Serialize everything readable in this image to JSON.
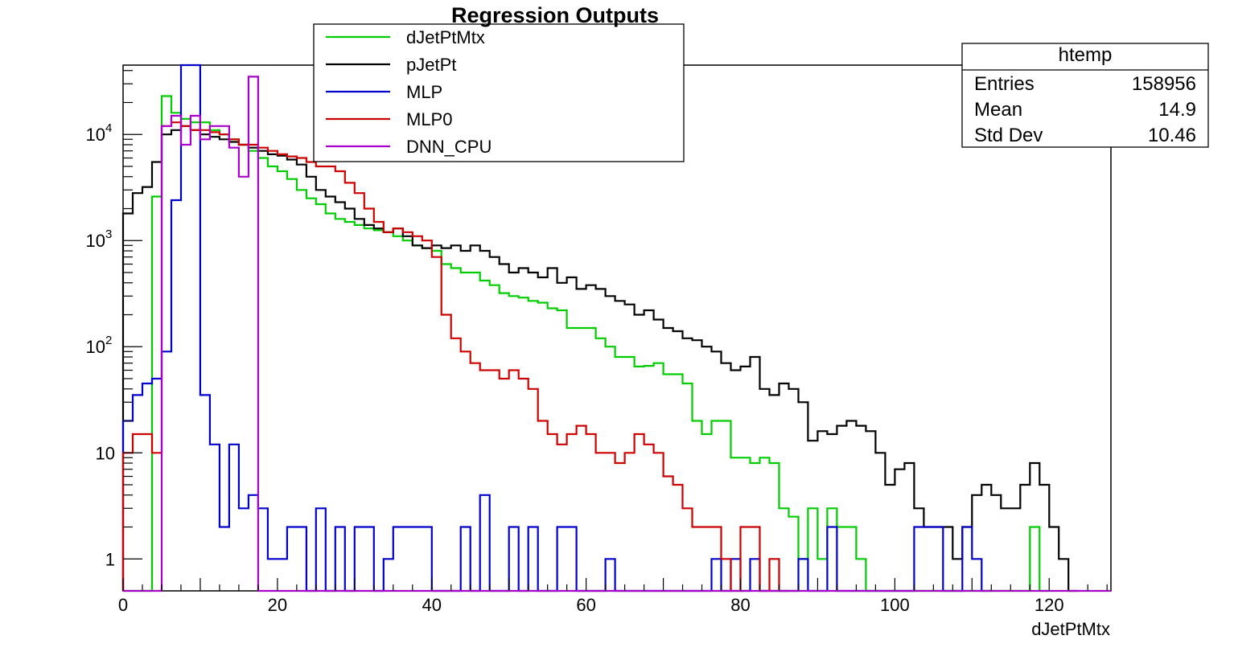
{
  "chart_data": {
    "type": "histogram-step",
    "title": "Regression Outputs",
    "xlabel": "dJetPtMtx",
    "ylabel": "",
    "xlim": [
      0,
      128
    ],
    "ylim": [
      0.5,
      45000
    ],
    "yscale": "log",
    "grid": false,
    "legend_position": "top-center",
    "bin_width": 1.25,
    "x_ticks": [
      0,
      20,
      40,
      60,
      80,
      100,
      120
    ],
    "x_tick_labels": [
      "0",
      "20",
      "40",
      "60",
      "80",
      "100",
      "120"
    ],
    "y_ticks": [
      1,
      10,
      100,
      1000,
      10000
    ],
    "y_tick_labels": [
      {
        "base": "1",
        "exp": ""
      },
      {
        "base": "10",
        "exp": ""
      },
      {
        "base": "10",
        "exp": "2"
      },
      {
        "base": "10",
        "exp": "3"
      },
      {
        "base": "10",
        "exp": "4"
      }
    ],
    "series": [
      {
        "name": "dJetPtMtx",
        "color": "#00cc00",
        "x": [
          0
        ],
        "values": [
          0
        ]
      },
      {
        "name": "pJetPt",
        "color": "#000000",
        "x": [
          0
        ],
        "values": [
          0
        ]
      },
      {
        "name": "MLP",
        "color": "#0000cc",
        "x": [
          0
        ],
        "values": [
          0
        ]
      },
      {
        "name": "MLP0",
        "color": "#cc0000",
        "x": [
          0
        ],
        "values": [
          0
        ]
      },
      {
        "name": "DNN_CPU",
        "color": "#aa00cc",
        "x": [
          0
        ],
        "values": [
          0
        ]
      }
    ],
    "stats_box": {
      "title": "htemp",
      "rows": [
        {
          "label": "Entries",
          "value": "158956"
        },
        {
          "label": "Mean",
          "value": "14.9"
        },
        {
          "label": "Std Dev",
          "value": "10.46"
        }
      ]
    }
  },
  "series_points": {
    "dJetPtMtx": [
      [
        0,
        0
      ],
      [
        3.75,
        2600
      ],
      [
        5,
        23000
      ],
      [
        6.25,
        16000
      ],
      [
        7.5,
        14000
      ],
      [
        8.75,
        13000
      ],
      [
        10,
        13000
      ],
      [
        11.25,
        11000
      ],
      [
        12.5,
        10000
      ],
      [
        13.75,
        9000
      ],
      [
        15,
        8000
      ],
      [
        16.25,
        7000
      ],
      [
        17.5,
        6000
      ],
      [
        18.75,
        5000
      ],
      [
        20,
        4500
      ],
      [
        21.25,
        3800
      ],
      [
        22.5,
        3000
      ],
      [
        23.75,
        2500
      ],
      [
        25,
        2200
      ],
      [
        26.25,
        1800
      ],
      [
        27.5,
        1600
      ],
      [
        28.75,
        1500
      ],
      [
        30,
        1400
      ],
      [
        31.25,
        1300
      ],
      [
        32.5,
        1250
      ],
      [
        33.75,
        1200
      ],
      [
        35,
        1100
      ],
      [
        36.25,
        1000
      ],
      [
        37.5,
        900
      ],
      [
        38.75,
        850
      ],
      [
        40,
        800
      ],
      [
        41.25,
        600
      ],
      [
        42.5,
        550
      ],
      [
        43.75,
        500
      ],
      [
        45,
        500
      ],
      [
        46.25,
        420
      ],
      [
        47.5,
        380
      ],
      [
        48.75,
        320
      ],
      [
        50,
        300
      ],
      [
        51.25,
        290
      ],
      [
        52.5,
        270
      ],
      [
        53.75,
        260
      ],
      [
        55,
        230
      ],
      [
        56.25,
        220
      ],
      [
        57.5,
        150
      ],
      [
        58.75,
        150
      ],
      [
        60,
        150
      ],
      [
        61.25,
        120
      ],
      [
        62.5,
        100
      ],
      [
        63.75,
        80
      ],
      [
        65,
        80
      ],
      [
        66.25,
        65
      ],
      [
        67.5,
        66
      ],
      [
        68.75,
        70
      ],
      [
        70,
        55
      ],
      [
        71.25,
        55
      ],
      [
        72.5,
        45
      ],
      [
        73.75,
        20
      ],
      [
        75,
        15
      ],
      [
        76.25,
        20
      ],
      [
        77.5,
        20
      ],
      [
        78.75,
        9
      ],
      [
        80,
        9
      ],
      [
        81.25,
        8
      ],
      [
        82.5,
        9
      ],
      [
        83.75,
        8
      ],
      [
        85,
        3
      ],
      [
        86.25,
        2.5
      ],
      [
        87.5,
        1
      ],
      [
        88.75,
        3
      ],
      [
        90,
        1
      ],
      [
        91.25,
        3
      ],
      [
        92.5,
        2
      ],
      [
        93.75,
        2
      ],
      [
        95,
        1
      ],
      [
        96.25,
        0.3
      ],
      [
        117.5,
        2
      ],
      [
        118.75,
        0.3
      ]
    ],
    "pJetPt": [
      [
        0,
        1800
      ],
      [
        1.25,
        2800
      ],
      [
        2.5,
        3200
      ],
      [
        3.75,
        5500
      ],
      [
        5,
        10000
      ],
      [
        6.25,
        11000
      ],
      [
        7.5,
        12000
      ],
      [
        8.75,
        11000
      ],
      [
        10,
        10000
      ],
      [
        11.25,
        9500
      ],
      [
        12.5,
        9000
      ],
      [
        13.75,
        8500
      ],
      [
        15,
        8000
      ],
      [
        16.25,
        7500
      ],
      [
        17.5,
        7000
      ],
      [
        18.75,
        6500
      ],
      [
        20,
        6300
      ],
      [
        21.25,
        5800
      ],
      [
        22.5,
        5200
      ],
      [
        23.75,
        4000
      ],
      [
        25,
        3000
      ],
      [
        26.25,
        2600
      ],
      [
        27.5,
        2300
      ],
      [
        28.75,
        2000
      ],
      [
        30,
        1600
      ],
      [
        31.25,
        1400
      ],
      [
        32.5,
        1300
      ],
      [
        33.75,
        1200
      ],
      [
        35,
        1300
      ],
      [
        36.25,
        1100
      ],
      [
        37.5,
        900
      ],
      [
        38.75,
        850
      ],
      [
        40,
        900
      ],
      [
        41.25,
        850
      ],
      [
        42.5,
        900
      ],
      [
        43.75,
        800
      ],
      [
        45,
        900
      ],
      [
        46.25,
        800
      ],
      [
        47.5,
        700
      ],
      [
        48.75,
        600
      ],
      [
        50,
        500
      ],
      [
        51.25,
        550
      ],
      [
        52.5,
        500
      ],
      [
        53.75,
        450
      ],
      [
        55,
        550
      ],
      [
        56.25,
        400
      ],
      [
        57.5,
        450
      ],
      [
        58.75,
        350
      ],
      [
        60,
        380
      ],
      [
        61.25,
        350
      ],
      [
        62.5,
        300
      ],
      [
        63.75,
        270
      ],
      [
        65,
        250
      ],
      [
        66.25,
        200
      ],
      [
        67.5,
        220
      ],
      [
        68.75,
        180
      ],
      [
        70,
        150
      ],
      [
        71.25,
        140
      ],
      [
        72.5,
        120
      ],
      [
        73.75,
        115
      ],
      [
        75,
        100
      ],
      [
        76.25,
        90
      ],
      [
        77.5,
        70
      ],
      [
        78.75,
        60
      ],
      [
        80,
        65
      ],
      [
        81.25,
        80
      ],
      [
        82.5,
        40
      ],
      [
        83.75,
        35
      ],
      [
        85,
        45
      ],
      [
        86.25,
        40
      ],
      [
        87.5,
        30
      ],
      [
        88.75,
        13
      ],
      [
        90,
        16
      ],
      [
        91.25,
        15
      ],
      [
        92.5,
        18
      ],
      [
        93.75,
        20
      ],
      [
        95,
        18
      ],
      [
        96.25,
        16
      ],
      [
        97.5,
        10
      ],
      [
        98.75,
        5
      ],
      [
        100,
        7
      ],
      [
        101.25,
        8
      ],
      [
        102.5,
        3
      ],
      [
        103.75,
        2
      ],
      [
        105,
        2
      ],
      [
        106.25,
        2
      ],
      [
        107.5,
        1
      ],
      [
        108.75,
        2
      ],
      [
        110,
        4
      ],
      [
        111.25,
        5
      ],
      [
        112.5,
        4
      ],
      [
        113.75,
        3
      ],
      [
        115,
        3
      ],
      [
        116.25,
        5
      ],
      [
        117.5,
        8
      ],
      [
        118.75,
        5
      ],
      [
        120,
        2
      ],
      [
        121.25,
        1
      ],
      [
        122.5,
        0.3
      ]
    ],
    "MLP": [
      [
        0,
        20
      ],
      [
        1.25,
        35
      ],
      [
        2.5,
        45
      ],
      [
        3.75,
        50
      ],
      [
        5,
        90
      ],
      [
        6.25,
        2400
      ],
      [
        7.5,
        45000
      ],
      [
        8.75,
        45000
      ],
      [
        10,
        35
      ],
      [
        11.25,
        12
      ],
      [
        12.5,
        2
      ],
      [
        13.75,
        12
      ],
      [
        15,
        3
      ],
      [
        16.25,
        4
      ],
      [
        17.5,
        3
      ],
      [
        18.75,
        1
      ],
      [
        20,
        1
      ],
      [
        21.25,
        2
      ],
      [
        22.5,
        2
      ],
      [
        23.75,
        0.3
      ],
      [
        25,
        3
      ],
      [
        26.25,
        0.3
      ],
      [
        27.5,
        2
      ],
      [
        28.75,
        0.3
      ],
      [
        30,
        2
      ],
      [
        31.25,
        2
      ],
      [
        32.5,
        0.3
      ],
      [
        33.75,
        1
      ],
      [
        35,
        2
      ],
      [
        36.25,
        2
      ],
      [
        37.5,
        2
      ],
      [
        38.75,
        2
      ],
      [
        40,
        0.3
      ],
      [
        43.75,
        2
      ],
      [
        45,
        0.3
      ],
      [
        46.25,
        4
      ],
      [
        47.5,
        0.3
      ],
      [
        50,
        2
      ],
      [
        51.25,
        0.3
      ],
      [
        52.5,
        2
      ],
      [
        53.75,
        0.3
      ],
      [
        56.25,
        2
      ],
      [
        57.5,
        2
      ],
      [
        58.75,
        0.3
      ],
      [
        62.5,
        1
      ],
      [
        63.75,
        0.3
      ],
      [
        76.25,
        1
      ],
      [
        77.5,
        0.3
      ],
      [
        78.75,
        1
      ],
      [
        80,
        0.3
      ],
      [
        81.25,
        1
      ],
      [
        82.5,
        0.3
      ],
      [
        87.5,
        1
      ],
      [
        88.75,
        0.3
      ],
      [
        91.25,
        2
      ],
      [
        92.5,
        0.3
      ],
      [
        102.5,
        2
      ],
      [
        103.75,
        2
      ],
      [
        105,
        2
      ],
      [
        106.25,
        0.3
      ],
      [
        108.75,
        2
      ],
      [
        110,
        1
      ],
      [
        111.25,
        0.3
      ]
    ],
    "MLP0": [
      [
        0,
        10
      ],
      [
        1.25,
        15
      ],
      [
        2.5,
        15
      ],
      [
        3.75,
        10
      ],
      [
        5,
        12000
      ],
      [
        6.25,
        13000
      ],
      [
        7.5,
        12000
      ],
      [
        8.75,
        11000
      ],
      [
        10,
        11000
      ],
      [
        11.25,
        10500
      ],
      [
        12.5,
        10000
      ],
      [
        13.75,
        9000
      ],
      [
        15,
        8000
      ],
      [
        16.25,
        8000
      ],
      [
        17.5,
        7500
      ],
      [
        18.75,
        7000
      ],
      [
        20,
        6500
      ],
      [
        21.25,
        6200
      ],
      [
        22.5,
        6000
      ],
      [
        23.75,
        5500
      ],
      [
        25,
        5000
      ],
      [
        26.25,
        5000
      ],
      [
        27.5,
        4500
      ],
      [
        28.75,
        3500
      ],
      [
        30,
        2800
      ],
      [
        31.25,
        2000
      ],
      [
        32.5,
        1500
      ],
      [
        33.75,
        1200
      ],
      [
        35,
        1300
      ],
      [
        36.25,
        1200
      ],
      [
        37.5,
        1100
      ],
      [
        38.75,
        1000
      ],
      [
        40,
        700
      ],
      [
        41.25,
        200
      ],
      [
        42.5,
        120
      ],
      [
        43.75,
        90
      ],
      [
        45,
        70
      ],
      [
        46.25,
        60
      ],
      [
        47.5,
        60
      ],
      [
        48.75,
        50
      ],
      [
        50,
        60
      ],
      [
        51.25,
        50
      ],
      [
        52.5,
        40
      ],
      [
        53.75,
        20
      ],
      [
        55,
        15
      ],
      [
        56.25,
        12
      ],
      [
        57.5,
        15
      ],
      [
        58.75,
        18
      ],
      [
        60,
        15
      ],
      [
        61.25,
        10
      ],
      [
        62.5,
        10
      ],
      [
        63.75,
        8
      ],
      [
        65,
        10
      ],
      [
        66.25,
        15
      ],
      [
        67.5,
        12
      ],
      [
        68.75,
        10
      ],
      [
        70,
        6
      ],
      [
        71.25,
        5
      ],
      [
        72.5,
        3
      ],
      [
        73.75,
        2
      ],
      [
        75,
        2
      ],
      [
        76.25,
        2
      ],
      [
        77.5,
        1
      ],
      [
        78.75,
        0.3
      ],
      [
        80,
        2
      ],
      [
        81.25,
        2
      ],
      [
        82.5,
        0.3
      ],
      [
        83.75,
        1
      ],
      [
        85,
        0.3
      ]
    ],
    "DNN_CPU": [
      [
        0,
        0.3
      ],
      [
        5,
        12000
      ],
      [
        6.25,
        15000
      ],
      [
        7.5,
        8000
      ],
      [
        8.75,
        15000
      ],
      [
        10,
        9000
      ],
      [
        11.25,
        12000
      ],
      [
        12.5,
        12000
      ],
      [
        13.75,
        7500
      ],
      [
        15,
        4000
      ],
      [
        16.25,
        35000
      ],
      [
        17.5,
        0.3
      ],
      [
        128,
        0.3
      ]
    ]
  }
}
